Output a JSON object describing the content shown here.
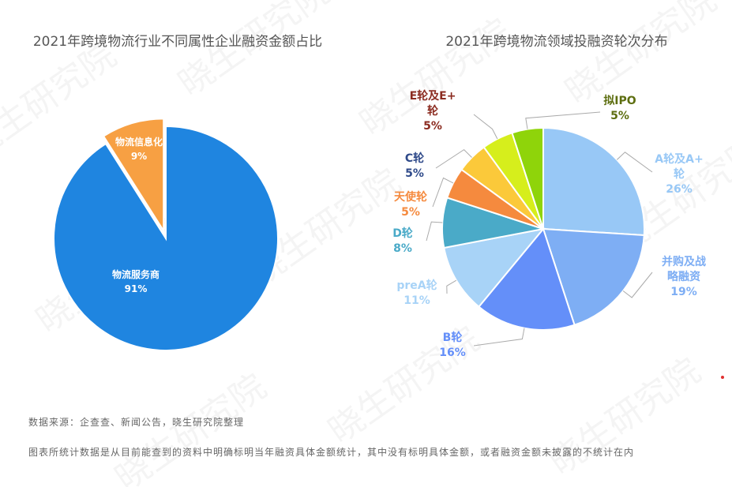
{
  "chart_data": [
    {
      "type": "pie",
      "title": "2021年跨境物流行业不同属性企业融资金额占比",
      "slices": [
        {
          "name": "物流服务商",
          "value": 91,
          "label": "91%",
          "color": "#1f85e0"
        },
        {
          "name": "物流信息化",
          "value": 9,
          "label": "9%",
          "color": "#f7a043"
        }
      ]
    },
    {
      "type": "pie",
      "title": "2021年跨境物流领域投融资轮次分布",
      "slices": [
        {
          "name": "A轮及A+轮",
          "value": 26,
          "label": "26%",
          "color": "#98c8f6"
        },
        {
          "name": "并购及战略融资",
          "value": 19,
          "label": "19%",
          "color": "#7eaef4"
        },
        {
          "name": "B轮",
          "value": 16,
          "label": "16%",
          "color": "#648ff9"
        },
        {
          "name": "preA轮",
          "value": 11,
          "label": "11%",
          "color": "#a8d3f7"
        },
        {
          "name": "D轮",
          "value": 8,
          "label": "8%",
          "color": "#4aaac8"
        },
        {
          "name": "天使轮",
          "value": 5,
          "label": "5%",
          "color": "#f58a3e"
        },
        {
          "name": "C轮",
          "value": 5,
          "label": "5%",
          "color": "#fbc93a"
        },
        {
          "name": "E轮及E+轮",
          "value": 5,
          "label": "5%",
          "color": "#d6ee1c"
        },
        {
          "name": "拟IPO",
          "value": 5,
          "label": "5%",
          "color": "#8fd40a"
        }
      ]
    }
  ],
  "footnotes": {
    "source": "数据来源：企查查、新闻公告，晓生研究院整理",
    "note": "图表所统计数据是从目前能查到的资料中明确标明当年融资具体金额统计，其中没有标明具体金额，或者融资金额未披露的不统计在内"
  },
  "watermark": "晓生研究院"
}
